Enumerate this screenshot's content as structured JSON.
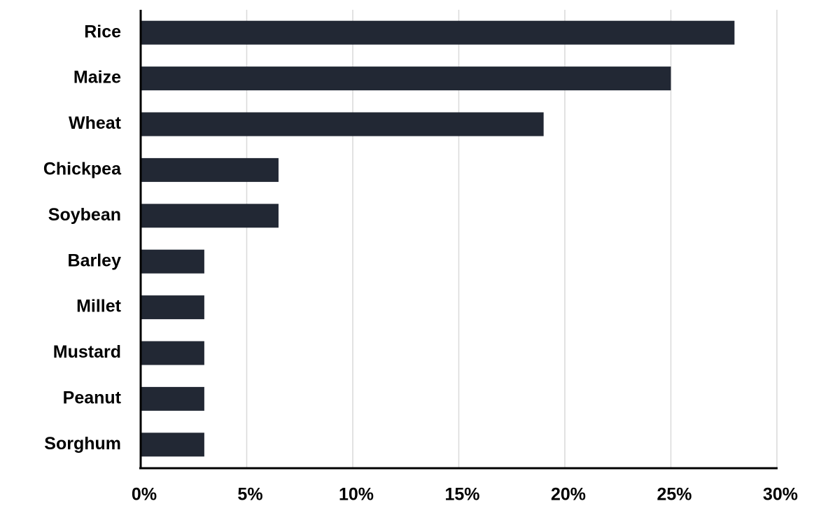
{
  "chart_data": {
    "type": "bar",
    "orientation": "horizontal",
    "categories": [
      "Rice",
      "Maize",
      "Wheat",
      "Chickpea",
      "Soybean",
      "Barley",
      "Millet",
      "Mustard",
      "Peanut",
      "Sorghum"
    ],
    "values": [
      28,
      25,
      19,
      6.5,
      6.5,
      3,
      3,
      3,
      3,
      3
    ],
    "color": "#222834",
    "xlim": [
      0,
      30
    ],
    "xticks": [
      {
        "value": 0,
        "label": "0%"
      },
      {
        "value": 5,
        "label": "5%"
      },
      {
        "value": 10,
        "label": "10%"
      },
      {
        "value": 15,
        "label": "15%"
      },
      {
        "value": 20,
        "label": "20%"
      },
      {
        "value": 25,
        "label": "25%"
      },
      {
        "value": 30,
        "label": "30%"
      }
    ],
    "grid": true
  }
}
